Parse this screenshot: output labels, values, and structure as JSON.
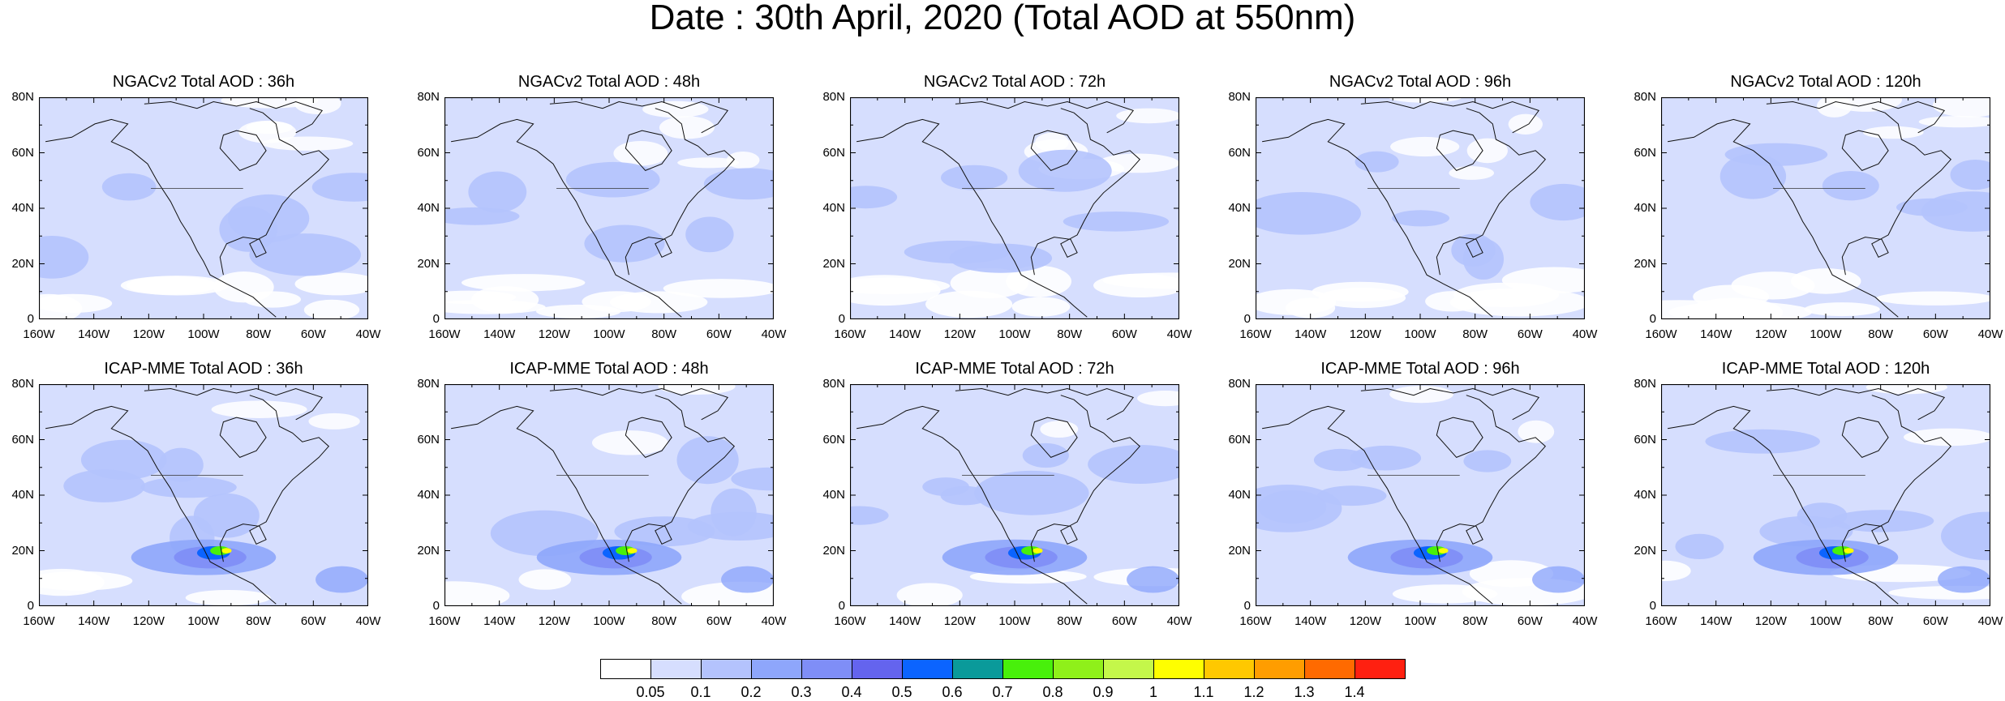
{
  "title": "Date : 30th April, 2020 (Total AOD at 550nm)",
  "y_ticks": [
    "80N",
    "60N",
    "40N",
    "20N",
    "0"
  ],
  "x_ticks": [
    "160W",
    "140W",
    "120W",
    "100W",
    "80W",
    "60W",
    "40W"
  ],
  "panels": [
    {
      "title": "NGACv2 Total AOD : 36h",
      "model": "NGACv2",
      "lead": "36h"
    },
    {
      "title": "NGACv2 Total AOD : 48h",
      "model": "NGACv2",
      "lead": "48h"
    },
    {
      "title": "NGACv2 Total AOD : 72h",
      "model": "NGACv2",
      "lead": "72h"
    },
    {
      "title": "NGACv2 Total AOD : 96h",
      "model": "NGACv2",
      "lead": "96h"
    },
    {
      "title": "NGACv2 Total AOD : 120h",
      "model": "NGACv2",
      "lead": "120h"
    },
    {
      "title": "ICAP-MME Total AOD : 36h",
      "model": "ICAP-MME",
      "lead": "36h"
    },
    {
      "title": "ICAP-MME Total AOD : 48h",
      "model": "ICAP-MME",
      "lead": "48h"
    },
    {
      "title": "ICAP-MME Total AOD : 72h",
      "model": "ICAP-MME",
      "lead": "72h"
    },
    {
      "title": "ICAP-MME Total AOD : 96h",
      "model": "ICAP-MME",
      "lead": "96h"
    },
    {
      "title": "ICAP-MME Total AOD : 120h",
      "model": "ICAP-MME",
      "lead": "120h"
    }
  ],
  "colorbar": {
    "labels": [
      "0.05",
      "0.1",
      "0.2",
      "0.3",
      "0.4",
      "0.5",
      "0.6",
      "0.7",
      "0.8",
      "0.9",
      "1",
      "1.1",
      "1.2",
      "1.3",
      "1.4"
    ],
    "colors": [
      "#ffffff",
      "#d6defe",
      "#b4c3fd",
      "#8ea6fb",
      "#7f8ef7",
      "#6464ee",
      "#0b64ff",
      "#0a9a9a",
      "#48f00b",
      "#8ff01a",
      "#c4f74a",
      "#fefe00",
      "#ffc800",
      "#ff9d00",
      "#ff6a00",
      "#ff2010"
    ]
  }
}
